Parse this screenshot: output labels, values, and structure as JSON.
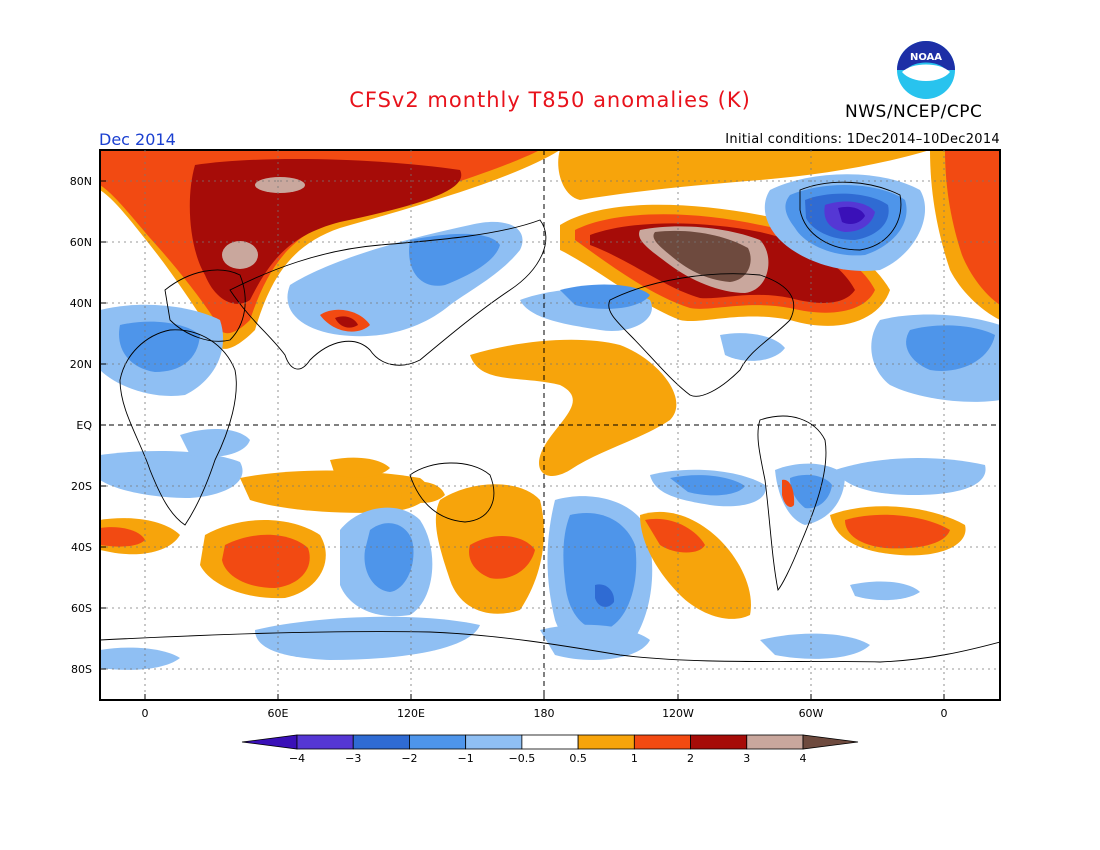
{
  "header": {
    "title": "CFSv2 monthly T850 anomalies (K)",
    "agency": "NWS/NCEP/CPC",
    "logo_text": "NOAA",
    "month": "Dec 2014",
    "initial_conditions": "Initial conditions: 1Dec2014–10Dec2014"
  },
  "map": {
    "lon_labels": [
      "0",
      "60E",
      "120E",
      "180",
      "120W",
      "60W",
      "0"
    ],
    "lat_labels": [
      "80N",
      "60N",
      "40N",
      "20N",
      "EQ",
      "20S",
      "40S",
      "60S",
      "80S"
    ]
  },
  "colorbar": {
    "labels": [
      "−4",
      "−3",
      "−2",
      "−1",
      "−0.5",
      "0.5",
      "1",
      "2",
      "3",
      "4"
    ],
    "colors": [
      "#3a10b8",
      "#5537d4",
      "#2f6bd3",
      "#4e95ea",
      "#8fbff3",
      "#ffffff",
      "#f7a40b",
      "#f24a12",
      "#a60c08",
      "#c9a79d",
      "#6e4a3e"
    ]
  },
  "colors": {
    "title": "#e8121b",
    "month": "#1a3fd0"
  }
}
